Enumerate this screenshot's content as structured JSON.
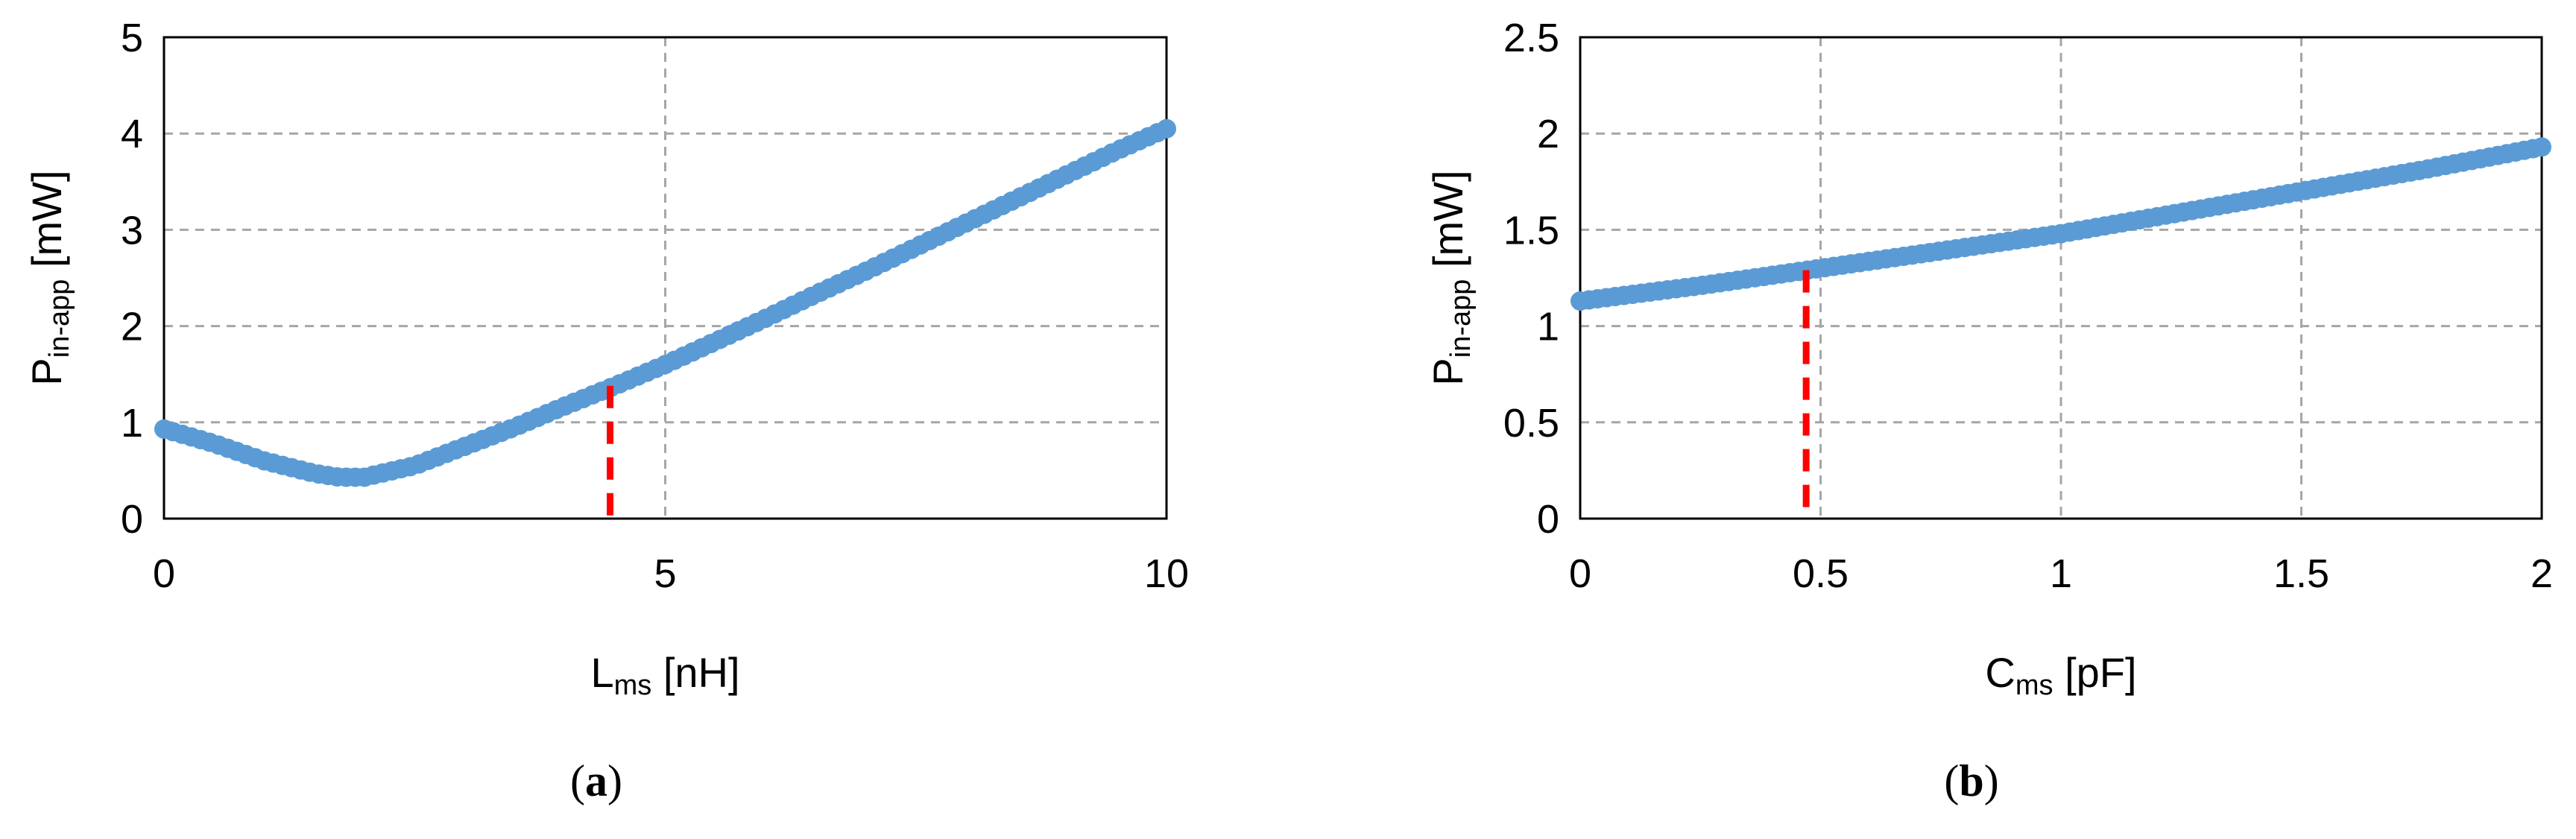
{
  "chart_data": [
    {
      "type": "scatter",
      "panel_label": "a",
      "xlabel": {
        "main": "L",
        "sub": "ms",
        "unit": " [nH]"
      },
      "ylabel": {
        "main": "P",
        "sub": "in-app",
        "unit": " [mW]"
      },
      "xlim": [
        0,
        10
      ],
      "ylim": [
        0,
        5
      ],
      "x_ticks": [
        "0",
        "5",
        "10"
      ],
      "y_ticks": [
        "0",
        "1",
        "2",
        "3",
        "4",
        "5"
      ],
      "grid": true,
      "series_color": "#5b9bd5",
      "marker_line_color": "#ff0000",
      "curve": {
        "x": [
          0,
          0.5,
          1,
          1.5,
          1.75,
          2,
          2.5,
          3,
          3.5,
          4,
          4.5,
          5,
          5.5,
          6,
          6.5,
          7,
          7.5,
          8,
          8.5,
          9,
          9.5,
          10
        ],
        "y": [
          0.93,
          0.78,
          0.6,
          0.47,
          0.43,
          0.43,
          0.55,
          0.75,
          0.95,
          1.17,
          1.38,
          1.6,
          1.84,
          2.08,
          2.33,
          2.57,
          2.82,
          3.07,
          3.32,
          3.57,
          3.82,
          4.05
        ]
      },
      "marker": {
        "x": 4.45,
        "y": 1.38
      }
    },
    {
      "type": "scatter",
      "panel_label": "b",
      "xlabel": {
        "main": "C",
        "sub": "ms",
        "unit": " [pF]"
      },
      "ylabel": {
        "main": "P",
        "sub": "in-app",
        "unit": " [mW]"
      },
      "xlim": [
        0,
        2
      ],
      "ylim": [
        0,
        2.5
      ],
      "x_ticks": [
        "0",
        "0.5",
        "1",
        "1.5",
        "2"
      ],
      "y_ticks": [
        "0",
        "0.5",
        "1",
        "1.5",
        "2",
        "2.5"
      ],
      "grid": true,
      "series_color": "#5b9bd5",
      "marker_line_color": "#ff0000",
      "curve": {
        "x": [
          0,
          0.25,
          0.5,
          0.75,
          1,
          1.25,
          1.5,
          1.75,
          2
        ],
        "y": [
          1.13,
          1.21,
          1.3,
          1.39,
          1.48,
          1.59,
          1.7,
          1.81,
          1.93
        ]
      },
      "marker": {
        "x": 0.47,
        "y": 1.29
      }
    }
  ]
}
